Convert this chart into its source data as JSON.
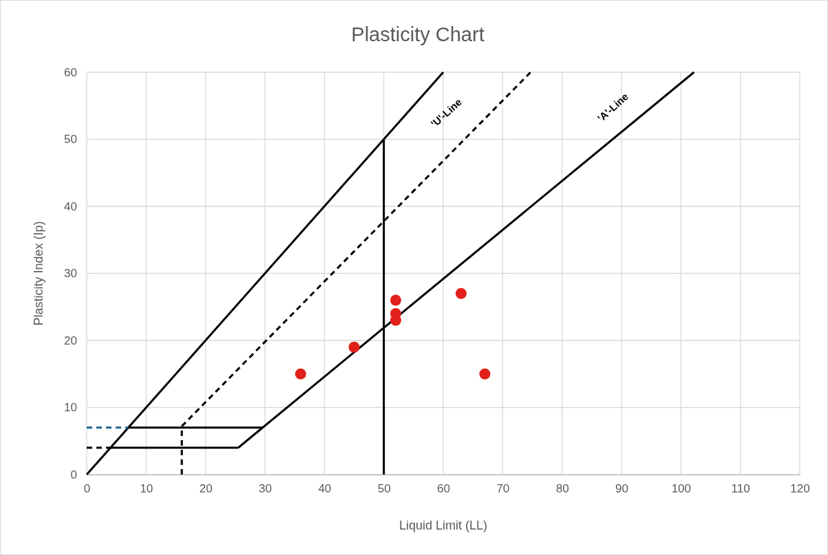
{
  "chart_data": {
    "type": "line",
    "title": "Plasticity Chart",
    "xlabel": "Liquid Limit (LL)",
    "ylabel": "Plasticity Index (Ip)",
    "xlim": [
      0,
      120
    ],
    "ylim": [
      0,
      60
    ],
    "xticks": [
      0,
      10,
      20,
      30,
      40,
      50,
      60,
      70,
      80,
      90,
      100,
      110,
      120
    ],
    "yticks": [
      0,
      10,
      20,
      30,
      40,
      50,
      60
    ],
    "grid": true,
    "series": [
      {
        "type": "line",
        "color": "#000000",
        "line_style": "solid",
        "marker": "none",
        "x": [
          0,
          60
        ],
        "values": [
          0,
          60
        ]
      },
      {
        "type": "line",
        "color": "#000000",
        "line_style": "dashed",
        "marker": "none",
        "x": [
          16,
          74.7
        ],
        "values": [
          7.2,
          60
        ]
      },
      {
        "type": "line",
        "color": "#000000",
        "line_style": "solid",
        "marker": "none",
        "x": [
          25.5,
          102.2
        ],
        "values": [
          4,
          60
        ]
      },
      {
        "type": "line",
        "color": "#000000",
        "line_style": "solid",
        "marker": "none",
        "x": [
          4,
          25.5
        ],
        "values": [
          4,
          4
        ]
      },
      {
        "type": "line",
        "color": "#000000",
        "line_style": "solid",
        "marker": "none",
        "x": [
          7,
          29.6
        ],
        "values": [
          7,
          7
        ]
      },
      {
        "type": "line",
        "color": "#000000",
        "line_style": "dashed",
        "marker": "none",
        "x": [
          0,
          4
        ],
        "values": [
          4,
          4
        ]
      },
      {
        "type": "line",
        "color": "#1f6391",
        "line_style": "dashed",
        "marker": "none",
        "x": [
          0,
          7
        ],
        "values": [
          7,
          7
        ]
      },
      {
        "type": "line",
        "color": "#000000",
        "line_style": "dashed",
        "marker": "none",
        "x": [
          16,
          16
        ],
        "values": [
          0,
          7.2
        ]
      },
      {
        "type": "line",
        "color": "#000000",
        "line_style": "solid",
        "marker": "none",
        "x": [
          50,
          50
        ],
        "values": [
          0,
          50
        ]
      },
      {
        "type": "scatter",
        "color": "#e3211c",
        "marker": "circle",
        "x": [
          36,
          45,
          52,
          52,
          52,
          63,
          67
        ],
        "values": [
          15,
          19,
          26,
          24,
          23,
          27,
          15
        ]
      }
    ],
    "annotations": [
      "'U'-Line",
      "'A'-Line"
    ]
  }
}
